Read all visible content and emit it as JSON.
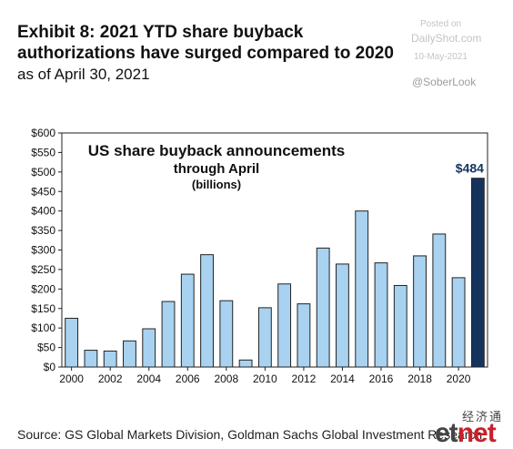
{
  "header": {
    "title": "Exhibit 8: 2021 YTD share buyback authorizations have surged compared to 2020",
    "subtitle": "as of April 30, 2021"
  },
  "watermark": {
    "posted": "Posted on",
    "site": "DailyShot.com",
    "date": "10-May-2021",
    "handle": "@SoberLook"
  },
  "footer": {
    "source": "Source: GS Global Markets Division, Goldman Sachs Global Investment Research",
    "logo_cn": "经济通",
    "logo_et": "et",
    "logo_net": "net"
  },
  "colors": {
    "bar": "#a8d2f0",
    "bar_highlight": "#14345e",
    "bar_stroke": "#222222",
    "highlight_label": "#14345e"
  },
  "chart_data": {
    "type": "bar",
    "inner_title": [
      "US share buyback announcements",
      "through April",
      "(billions)"
    ],
    "categories": [
      "2000",
      "2001",
      "2002",
      "2003",
      "2004",
      "2005",
      "2006",
      "2007",
      "2008",
      "2009",
      "2010",
      "2011",
      "2012",
      "2013",
      "2014",
      "2015",
      "2016",
      "2017",
      "2018",
      "2019",
      "2020",
      "2021"
    ],
    "values": [
      125,
      43,
      41,
      67,
      98,
      168,
      238,
      288,
      170,
      18,
      152,
      213,
      162,
      305,
      264,
      400,
      267,
      209,
      285,
      341,
      229,
      484
    ],
    "highlight_index": 21,
    "highlight_label": "$484",
    "xticks": [
      "2000",
      "2002",
      "2004",
      "2006",
      "2008",
      "2010",
      "2012",
      "2014",
      "2016",
      "2018",
      "2020"
    ],
    "yticks": [
      "$0",
      "$50",
      "$100",
      "$150",
      "$200",
      "$250",
      "$300",
      "$350",
      "$400",
      "$450",
      "$500",
      "$550",
      "$600"
    ],
    "ylim": [
      0,
      600
    ],
    "xlabel": "",
    "ylabel": "",
    "grid": false,
    "legend": "none"
  }
}
